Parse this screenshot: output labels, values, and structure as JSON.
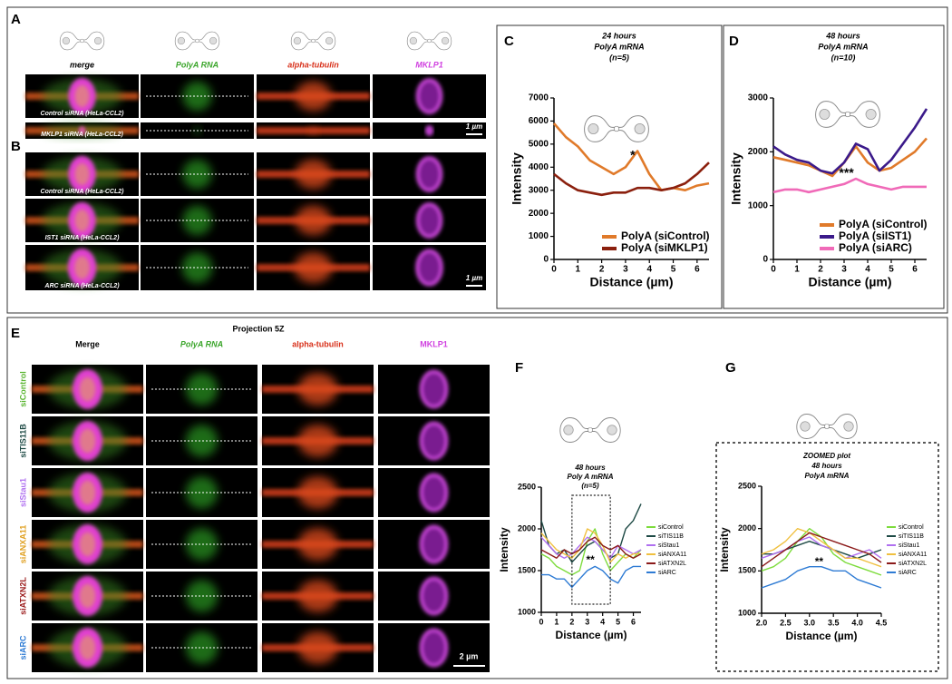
{
  "panel_letters": [
    "A",
    "B",
    "C",
    "D",
    "E",
    "F",
    "G"
  ],
  "panel_a": {
    "columns": [
      "merge",
      "PolyA RNA",
      "alpha-tubulin",
      "MKLP1"
    ],
    "rows": [
      "Control siRNA (HeLa-CCL2)",
      "MKLP1 siRNA (HeLa-CCL2)"
    ],
    "scale_bar": "1 µm"
  },
  "panel_b": {
    "rows": [
      "Control siRNA (HeLa-CCL2)",
      "IST1 siRNA (HeLa-CCL2)",
      "ARC siRNA (HeLa-CCL2)"
    ],
    "scale_bar": "1 µm"
  },
  "panel_e": {
    "title": "Projection 5Z",
    "columns": [
      "Merge",
      "PolyA RNA",
      "alpha-tubulin",
      "MKLP1"
    ],
    "rows": [
      "siControl",
      "siTIS11B",
      "siStau1",
      "siANXA11",
      "siATXN2L",
      "siARC"
    ],
    "scale_bar": "2 µm"
  },
  "chart_data": [
    {
      "type": "line",
      "title": [
        "24 hours",
        "PolyA mRNA",
        "(n=5)"
      ],
      "x_label": "Distance (µm)",
      "y_label": "Intensity",
      "x": [
        0,
        0.5,
        1,
        1.5,
        2,
        2.5,
        3,
        3.5,
        4,
        4.5,
        5,
        5.5,
        6,
        6.5
      ],
      "series": [
        {
          "name": "PolyA (siControl)",
          "color": "#e07a2a",
          "values": [
            5900,
            5300,
            4900,
            4300,
            4000,
            3700,
            4000,
            4700,
            3700,
            3000,
            3100,
            3000,
            3200,
            3300
          ]
        },
        {
          "name": "PolyA (siMKLP1)",
          "color": "#8b200e",
          "values": [
            3700,
            3300,
            3000,
            2900,
            2800,
            2900,
            2900,
            3100,
            3100,
            3000,
            3100,
            3300,
            3700,
            4200
          ]
        }
      ],
      "xlim": [
        0,
        6.5
      ],
      "xticks": [
        0,
        1,
        2,
        3,
        4,
        5,
        6
      ],
      "ylim": [
        0,
        7000
      ],
      "yticks": [
        0,
        1000,
        2000,
        3000,
        4000,
        5000,
        6000,
        7000
      ],
      "legend": "lower right",
      "annotations": [
        {
          "text": "*",
          "x": 3.3,
          "y": 4500
        }
      ]
    },
    {
      "type": "line",
      "title": [
        "48 hours",
        "PolyA mRNA",
        "(n=10)"
      ],
      "x_label": "Distance (µm)",
      "y_label": "Intensity",
      "x": [
        0,
        0.5,
        1,
        1.5,
        2,
        2.5,
        3,
        3.5,
        4,
        4.5,
        5,
        5.5,
        6,
        6.5
      ],
      "series": [
        {
          "name": "PolyA (siControl)",
          "color": "#e07a2a",
          "values": [
            1900,
            1850,
            1800,
            1750,
            1650,
            1550,
            1800,
            2100,
            1800,
            1650,
            1700,
            1850,
            2000,
            2250
          ]
        },
        {
          "name": "PolyA (siIST1)",
          "color": "#3b1a8a",
          "values": [
            2100,
            1950,
            1850,
            1800,
            1650,
            1600,
            1800,
            2150,
            2050,
            1650,
            1850,
            2150,
            2450,
            2800
          ]
        },
        {
          "name": "PolyA (siARC)",
          "color": "#f06ab8",
          "values": [
            1250,
            1300,
            1300,
            1250,
            1300,
            1350,
            1400,
            1500,
            1400,
            1350,
            1300,
            1350,
            1350,
            1350
          ]
        }
      ],
      "xlim": [
        0,
        6.5
      ],
      "xticks": [
        0,
        1,
        2,
        3,
        4,
        5,
        6
      ],
      "ylim": [
        0,
        3000
      ],
      "yticks": [
        0,
        1000,
        2000,
        3000
      ],
      "legend": "lower right",
      "annotations": [
        {
          "text": "***",
          "x": 3.1,
          "y": 1600
        }
      ]
    },
    {
      "type": "line",
      "title": [
        "48 hours",
        "Poly A mRNA",
        "(n=5)"
      ],
      "x_label": "Distance (µm)",
      "y_label": "Intensity",
      "x": [
        0,
        0.5,
        1,
        1.5,
        2,
        2.5,
        3,
        3.5,
        4,
        4.5,
        5,
        5.5,
        6,
        6.5
      ],
      "series": [
        {
          "name": "siControl",
          "color": "#7ddc3c",
          "values": [
            1700,
            1650,
            1550,
            1500,
            1450,
            1500,
            1850,
            2000,
            1700,
            1500,
            1600,
            1700,
            1650,
            1750
          ]
        },
        {
          "name": "siTIS11B",
          "color": "#1e4a45",
          "values": [
            2100,
            1800,
            1700,
            1750,
            1600,
            1700,
            1800,
            1850,
            1750,
            1650,
            1700,
            2000,
            2100,
            2300
          ]
        },
        {
          "name": "siStau1",
          "color": "#b070f0",
          "values": [
            1900,
            1800,
            1700,
            1650,
            1700,
            1800,
            1900,
            1850,
            1750,
            1650,
            1800,
            1750,
            1700,
            1750
          ]
        },
        {
          "name": "siANXA11",
          "color": "#f0c040",
          "values": [
            1950,
            1850,
            1750,
            1700,
            1650,
            1750,
            2000,
            1950,
            1800,
            1600,
            1700,
            1650,
            1700,
            1700
          ]
        },
        {
          "name": "siATXN2L",
          "color": "#8b1a1a",
          "values": [
            1750,
            1700,
            1650,
            1750,
            1700,
            1750,
            1850,
            1900,
            1800,
            1750,
            1800,
            1700,
            1650,
            1700
          ]
        },
        {
          "name": "siARC",
          "color": "#2e7bd4",
          "values": [
            1450,
            1450,
            1400,
            1400,
            1300,
            1400,
            1500,
            1550,
            1500,
            1400,
            1350,
            1500,
            1550,
            1550
          ]
        }
      ],
      "xlim": [
        0,
        6.5
      ],
      "xticks": [
        0,
        1,
        2,
        3,
        4,
        5,
        6
      ],
      "ylim": [
        1000,
        2500
      ],
      "yticks": [
        1000,
        1500,
        2000,
        2500
      ],
      "legend": "right",
      "annotations": [
        {
          "text": "**",
          "x": 3.2,
          "y": 1620
        }
      ]
    },
    {
      "type": "line",
      "title": [
        "ZOOMED plot",
        "48 hours",
        "PolyA mRNA"
      ],
      "x_label": "Distance (µm)",
      "y_label": "Intensity",
      "x": [
        2,
        2.25,
        2.5,
        2.75,
        3,
        3.25,
        3.5,
        3.75,
        4,
        4.25,
        4.5
      ],
      "series": [
        {
          "name": "siControl",
          "color": "#7ddc3c",
          "values": [
            1500,
            1550,
            1650,
            1850,
            2000,
            1900,
            1700,
            1600,
            1550,
            1500,
            1450
          ]
        },
        {
          "name": "siTIS11B",
          "color": "#1e4a45",
          "values": [
            1700,
            1700,
            1750,
            1800,
            1850,
            1800,
            1750,
            1700,
            1650,
            1700,
            1750
          ]
        },
        {
          "name": "siStau1",
          "color": "#b070f0",
          "values": [
            1650,
            1700,
            1750,
            1850,
            1900,
            1800,
            1750,
            1650,
            1700,
            1750,
            1650
          ]
        },
        {
          "name": "siANXA11",
          "color": "#f0c040",
          "values": [
            1700,
            1750,
            1850,
            2000,
            1950,
            1850,
            1750,
            1650,
            1650,
            1600,
            1550
          ]
        },
        {
          "name": "siATXN2L",
          "color": "#8b1a1a",
          "values": [
            1550,
            1650,
            1750,
            1850,
            1950,
            1900,
            1850,
            1800,
            1750,
            1700,
            1600
          ]
        },
        {
          "name": "siARC",
          "color": "#2e7bd4",
          "values": [
            1300,
            1350,
            1400,
            1500,
            1550,
            1550,
            1500,
            1500,
            1400,
            1350,
            1300
          ]
        }
      ],
      "xlim": [
        2,
        4.5
      ],
      "xticks": [
        {
          "value": 2,
          "label": "2.0"
        },
        2.5,
        {
          "value": 3,
          "label": "3.0"
        },
        3.5,
        {
          "value": 4,
          "label": "4.0"
        },
        4.5
      ],
      "ylim": [
        1000,
        2500
      ],
      "yticks": [
        1000,
        1500,
        2000,
        2500
      ],
      "legend": "right",
      "annotations": [
        {
          "text": "**",
          "x": 3.2,
          "y": 1600
        }
      ]
    }
  ]
}
